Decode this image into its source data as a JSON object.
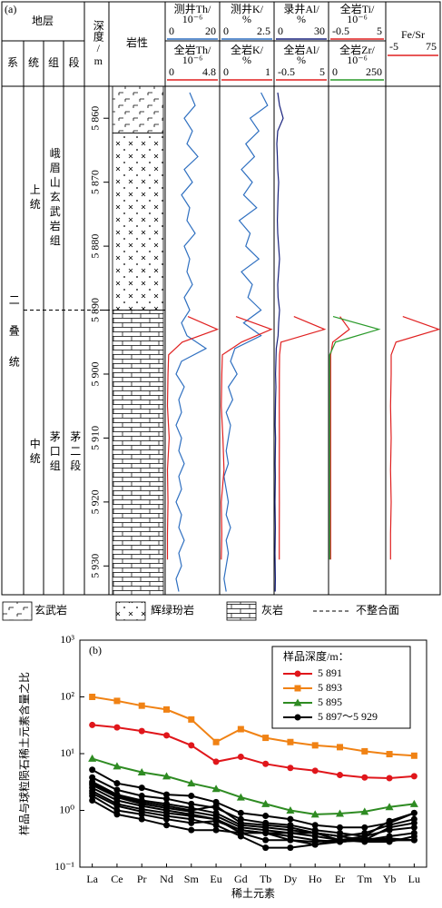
{
  "chart_data": [
    {
      "type": "well-log",
      "label": "(a)",
      "strata_header": "地层",
      "strata_columns": [
        "系",
        "统",
        "组",
        "段"
      ],
      "depth_label": "深度/m",
      "lithology_label": "岩性",
      "ylim": [
        5855,
        5934.5
      ],
      "yticks": [
        {
          "value": 5860,
          "label": "5 860"
        },
        {
          "value": 5870,
          "label": "5 870"
        },
        {
          "value": 5880,
          "label": "5 880"
        },
        {
          "value": 5890,
          "label": "5 890"
        },
        {
          "value": 5900,
          "label": "5 900"
        },
        {
          "value": 5910,
          "label": "5 910"
        },
        {
          "value": 5920,
          "label": "5 920"
        },
        {
          "value": 5930,
          "label": "5 930"
        }
      ],
      "strata": [
        [
          {
            "text": "二叠统",
            "top": 5855,
            "bottom": 5934.5
          }
        ],
        [
          {
            "text": "上统",
            "top": 5855,
            "bottom": 5890
          },
          {
            "text": "中统",
            "top": 5890,
            "bottom": 5934.5
          }
        ],
        [
          {
            "text": "峨眉山玄武岩组",
            "top": 5855,
            "bottom": 5890
          },
          {
            "text": "茅口组",
            "top": 5890,
            "bottom": 5934.5
          }
        ],
        [
          {
            "text": "茅二段",
            "top": 5890,
            "bottom": 5934.5
          }
        ]
      ],
      "unconformity": 5890,
      "legend": [
        "玄武岩",
        "辉绿玢岩",
        "灰岩",
        "不整合面"
      ],
      "lithology": [
        {
          "rock": "玄武岩",
          "top": 5855,
          "bottom": 5862.3
        },
        {
          "rock": "辉绿玢岩",
          "top": 5862.3,
          "bottom": 5890
        },
        {
          "rock": "灰岩",
          "top": 5890,
          "bottom": 5934.5
        }
      ],
      "log_depth": [
        5856,
        5858,
        5860,
        5862,
        5864,
        5866,
        5868,
        5870,
        5872,
        5874,
        5876,
        5878,
        5880,
        5882,
        5884,
        5886,
        5888,
        5890,
        5892,
        5894,
        5896,
        5898,
        5900,
        5902,
        5904,
        5906,
        5908,
        5910,
        5912,
        5914,
        5916,
        5918,
        5920,
        5922,
        5924,
        5926,
        5928,
        5930,
        5932,
        5934
      ],
      "rock_depth": [
        5891,
        5893,
        5895,
        5897,
        5900,
        5905,
        5910,
        5915,
        5920,
        5925,
        5929
      ],
      "tracks": [
        {
          "curves": [
            {
              "name": "测井Th/",
              "unit": "10⁻⁶",
              "xlim": [
                0,
                20
              ],
              "color": "#2e6fc0",
              "source": "log",
              "values": [
                9,
                11,
                7,
                10,
                8,
                12,
                7,
                10,
                6,
                9,
                8,
                11,
                7,
                9,
                8,
                10,
                7,
                9,
                6,
                8,
                15,
                6,
                4,
                7,
                5,
                6,
                4,
                6,
                5,
                7,
                5,
                6,
                4,
                6,
                5,
                7,
                5,
                6,
                4,
                5
              ]
            },
            {
              "name": "全岩Th/",
              "unit": "10⁻⁶",
              "xlim": [
                0,
                4.8
              ],
              "color": "#e02020",
              "source": "rock",
              "values": [
                2,
                4.6,
                1.5,
                0.3,
                0.25,
                0.2,
                0.35,
                0.2,
                0.25,
                0.2,
                0.2
              ]
            }
          ]
        },
        {
          "curves": [
            {
              "name": "测井K/",
              "unit": "%",
              "xlim": [
                0,
                2.5
              ],
              "color": "#2e6fc0",
              "source": "log",
              "values": [
                1.9,
                2.2,
                1.4,
                1.8,
                1.2,
                1.6,
                1,
                1.5,
                1.1,
                1.7,
                0.9,
                1.4,
                1.2,
                1.8,
                1,
                1.5,
                1.3,
                1.9,
                1.1,
                1.9,
                0.7,
                0.5,
                0.8,
                0.4,
                0.6,
                0.3,
                0.5,
                0.4,
                0.3,
                0.4,
                0.2,
                0.3,
                0.4,
                0.3,
                0.5,
                0.3,
                0.4,
                0.3,
                0.2,
                0.3
              ]
            },
            {
              "name": "全岩K/",
              "unit": "%",
              "xlim": [
                0,
                1
              ],
              "color": "#e02020",
              "source": "rock",
              "values": [
                0.3,
                0.95,
                0.4,
                0.05,
                0.04,
                0.03,
                0.06,
                0.08,
                0.03,
                0.04,
                0.03
              ]
            }
          ]
        },
        {
          "curves": [
            {
              "name": "录井Al/",
              "unit": "%",
              "xlim": [
                0,
                30
              ],
              "color": "#1a237e",
              "source": "log",
              "values": [
                2,
                3,
                5,
                2,
                1.5,
                1.8,
                2,
                2.5,
                2.2,
                2,
                1.8,
                2,
                2.5,
                3,
                2.5,
                2,
                2.2,
                3,
                2.5,
                2.2,
                1.2,
                1,
                0.8,
                1,
                0.8,
                0.7,
                0.6,
                0.8,
                0.7,
                0.6,
                0.7,
                0.6,
                0.5,
                0.6,
                0.7,
                0.6,
                0.5,
                0.6,
                0.7,
                0.6
              ]
            },
            {
              "name": "全岩Al/",
              "unit": "%",
              "xlim": [
                -0.5,
                5
              ],
              "color": "#e02020",
              "source": "rock",
              "values": [
                1.5,
                4.6,
                0.2,
                0.05,
                0.03,
                0.02,
                0.03,
                0.02,
                0.03,
                0.02,
                0.02
              ]
            }
          ]
        },
        {
          "curves": [
            {
              "name": "全岩Ti/",
              "unit": "10⁻⁶",
              "xlim": [
                -0.5,
                5
              ],
              "color": "#e02020",
              "source": "rock",
              "values": [
                0.6,
                1.5,
                -0.1,
                -0.3,
                -0.3,
                -0.3,
                -0.3,
                -0.3,
                -0.3,
                -0.3,
                -0.3
              ]
            },
            {
              "name": "全岩Zr/",
              "unit": "10⁻⁶",
              "xlim": [
                0,
                250
              ],
              "color": "#2a9a2a",
              "source": "rock",
              "values": [
                20,
                220,
                30,
                5,
                5,
                5,
                5,
                5,
                5,
                5,
                5
              ]
            }
          ]
        },
        {
          "curves": [
            {
              "name": "Fe/Sr",
              "xlim": [
                -5,
                75
              ],
              "color": "#e02020",
              "source": "rock",
              "values": [
                20,
                73,
                10,
                3,
                3,
                2,
                3,
                2,
                3,
                2,
                2
              ]
            }
          ]
        }
      ]
    },
    {
      "type": "line",
      "label": "(b)",
      "log_y": true,
      "categories": [
        "La",
        "Ce",
        "Pr",
        "Nd",
        "Sm",
        "Eu",
        "Gd",
        "Tb",
        "Dy",
        "Ho",
        "Er",
        "Tm",
        "Yb",
        "Lu"
      ],
      "ylim": [
        0.1,
        1000
      ],
      "yticks": [
        {
          "value": 0.1,
          "label": "10⁻¹"
        },
        {
          "value": 1,
          "label": "10⁰"
        },
        {
          "value": 10,
          "label": "10¹"
        },
        {
          "value": 100,
          "label": "10²"
        },
        {
          "value": 1000,
          "label": "10³"
        }
      ],
      "ylabel": "样品与球粒陨石稀土元素含量之比",
      "xlabel": "稀土元素",
      "legend_title": "样品深度/m：",
      "series": [
        {
          "name": "5 891",
          "color": "#e0161b",
          "marker": "circle",
          "values": [
            32,
            29,
            25,
            21,
            14,
            7.2,
            8.8,
            6.6,
            5.6,
            5,
            4.2,
            3.8,
            3.7,
            4
          ]
        },
        {
          "name": "5 893",
          "color": "#f08214",
          "marker": "square",
          "values": [
            100,
            85,
            70,
            60,
            40,
            16,
            27,
            19,
            16,
            14,
            13,
            11,
            9.8,
            9.2
          ]
        },
        {
          "name": "5 895",
          "color": "#2e8b22",
          "marker": "triangle",
          "values": [
            8.2,
            6,
            4.7,
            4,
            3,
            2.4,
            1.7,
            1.3,
            1,
            0.85,
            0.88,
            0.95,
            1.15,
            1.3
          ]
        },
        {
          "name": "5 897～5 929",
          "color": "#000000",
          "marker": "circle",
          "lines": [
            [
              5.2,
              3,
              2.5,
              1.9,
              1.8,
              1.4,
              0.9,
              0.8,
              0.7,
              0.55,
              0.5,
              0.5,
              0.6,
              0.9
            ],
            [
              3.8,
              2.3,
              1.8,
              1.6,
              1.3,
              1.1,
              0.7,
              0.6,
              0.55,
              0.45,
              0.4,
              0.35,
              0.45,
              0.5
            ],
            [
              3.2,
              1.9,
              1.5,
              1.3,
              1.1,
              0.9,
              0.55,
              0.5,
              0.45,
              0.4,
              0.35,
              0.3,
              0.35,
              0.4
            ],
            [
              2.8,
              1.7,
              1.3,
              1.1,
              0.95,
              0.8,
              0.5,
              0.45,
              0.4,
              0.35,
              0.3,
              0.3,
              0.3,
              0.3
            ],
            [
              2.5,
              1.5,
              1.2,
              1,
              0.85,
              0.7,
              0.45,
              0.4,
              0.35,
              0.3,
              0.28,
              0.3,
              0.32,
              0.3
            ],
            [
              2.2,
              1.3,
              1.05,
              0.9,
              0.8,
              0.7,
              0.4,
              0.3,
              0.3,
              0.25,
              0.28,
              0.3,
              0.5,
              0.6
            ],
            [
              2,
              1.2,
              0.95,
              0.8,
              0.7,
              0.55,
              0.35,
              0.22,
              0.22,
              0.25,
              0.3,
              0.32,
              0.3,
              0.3
            ],
            [
              1.8,
              1,
              0.85,
              0.7,
              0.6,
              0.65,
              0.45,
              0.4,
              0.4,
              0.4,
              0.35,
              0.4,
              0.55,
              0.7
            ],
            [
              1.5,
              0.85,
              0.7,
              0.55,
              0.45,
              0.45,
              0.4,
              0.4,
              0.3,
              0.28,
              0.3,
              0.35,
              0.65,
              0.9
            ],
            [
              3,
              1.8,
              1.4,
              1.2,
              1,
              1.2,
              0.6,
              0.55,
              0.5,
              0.4,
              0.3,
              0.28,
              0.28,
              0.35
            ]
          ]
        }
      ]
    }
  ]
}
